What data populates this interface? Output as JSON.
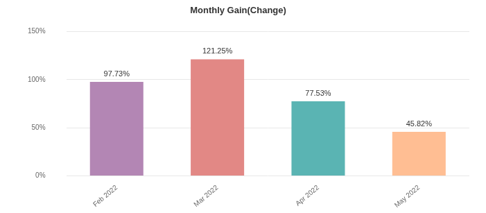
{
  "chart_data": {
    "type": "bar",
    "title": "Monthly Gain(Change)",
    "categories": [
      "Feb 2022",
      "Mar 2022",
      "Apr 2022",
      "May 2022"
    ],
    "values": [
      97.73,
      121.25,
      77.53,
      45.82
    ],
    "value_labels": [
      "97.73%",
      "121.25%",
      "77.53%",
      "45.82%"
    ],
    "colors": [
      "#b386b4",
      "#e28885",
      "#5ab4b3",
      "#ffbe93"
    ],
    "ylim": [
      0,
      150
    ],
    "yticks": [
      {
        "value": 0,
        "label": "0%"
      },
      {
        "value": 50,
        "label": "50%"
      },
      {
        "value": 100,
        "label": "100%"
      },
      {
        "value": 150,
        "label": "150%"
      }
    ],
    "grid": true,
    "data_labels": true
  }
}
